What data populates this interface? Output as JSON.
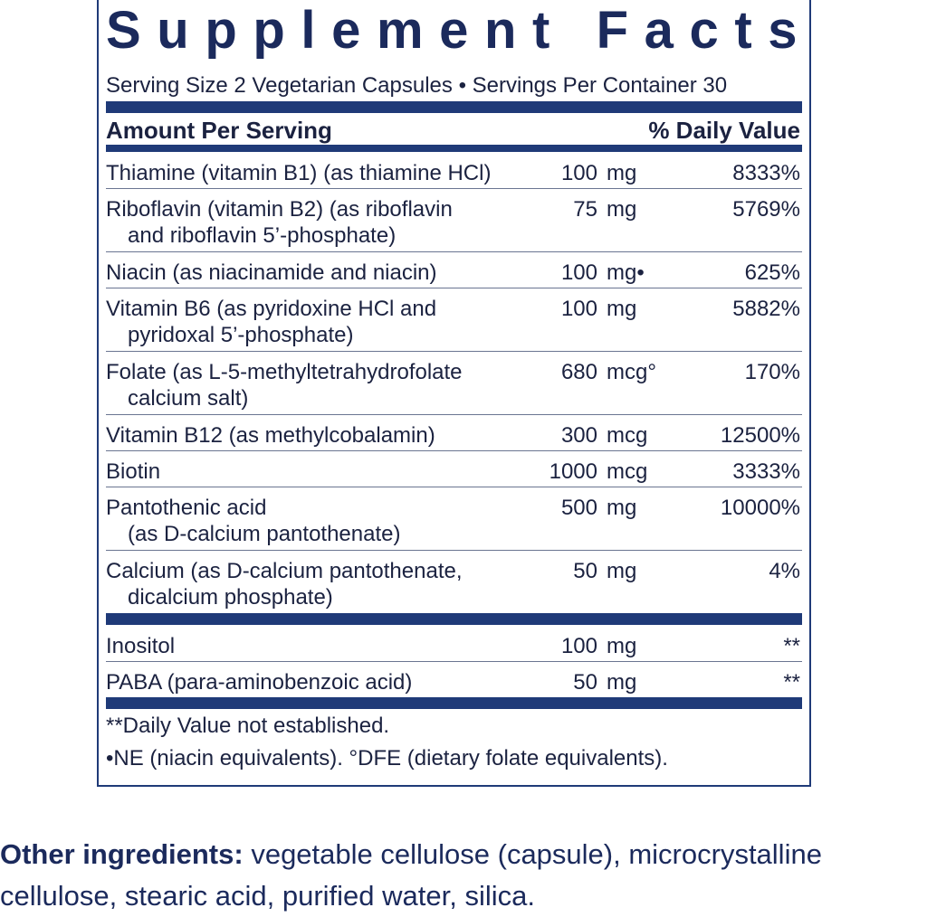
{
  "panel": {
    "title": "Supplement Facts",
    "serving": "Serving Size 2 Vegetarian Capsules • Servings Per Container 30",
    "header": {
      "amount": "Amount Per Serving",
      "dv": "% Daily Value"
    },
    "nutrients": [
      {
        "name": [
          "Thiamine (vitamin B1) (as thiamine HCl)"
        ],
        "amount": "100",
        "unit": "mg",
        "dv": "8333%"
      },
      {
        "name": [
          "Riboflavin (vitamin B2) (as riboflavin",
          "and riboflavin 5’-phosphate)"
        ],
        "amount": "75",
        "unit": "mg",
        "dv": "5769%"
      },
      {
        "name": [
          "Niacin (as niacinamide and niacin)"
        ],
        "amount": "100",
        "unit": "mg•",
        "dv": "625%"
      },
      {
        "name": [
          "Vitamin B6 (as pyridoxine HCl and",
          "pyridoxal 5’-phosphate)"
        ],
        "amount": "100",
        "unit": "mg",
        "dv": "5882%"
      },
      {
        "name": [
          "Folate (as L-5-methyltetrahydrofolate",
          "calcium salt)"
        ],
        "amount": "680",
        "unit": "mcg°",
        "dv": "170%"
      },
      {
        "name": [
          "Vitamin B12 (as methylcobalamin)"
        ],
        "amount": "300",
        "unit": "mcg",
        "dv": "12500%"
      },
      {
        "name": [
          "Biotin"
        ],
        "amount": "1000",
        "unit": "mcg",
        "dv": "3333%"
      },
      {
        "name": [
          "Pantothenic acid",
          "(as D-calcium pantothenate)"
        ],
        "amount": "500",
        "unit": "mg",
        "dv": "10000%"
      },
      {
        "name": [
          "Calcium (as D-calcium pantothenate,",
          "dicalcium phosphate)"
        ],
        "amount": "50",
        "unit": "mg",
        "dv": "4%"
      }
    ],
    "other_nutrients": [
      {
        "name": [
          "Inositol"
        ],
        "amount": "100",
        "unit": "mg",
        "dv": "**"
      },
      {
        "name": [
          "PABA (para-aminobenzoic acid)"
        ],
        "amount": "50",
        "unit": "mg",
        "dv": "**"
      }
    ],
    "footnotes": [
      "**Daily Value not established.",
      "•NE (niacin equivalents). °DFE (dietary folate equivalents)."
    ]
  },
  "other_ingredients": {
    "label": "Other ingredients:",
    "text": "vegetable cellulose (capsule), microcrystalline cellulose, stearic acid, purified water, silica."
  }
}
